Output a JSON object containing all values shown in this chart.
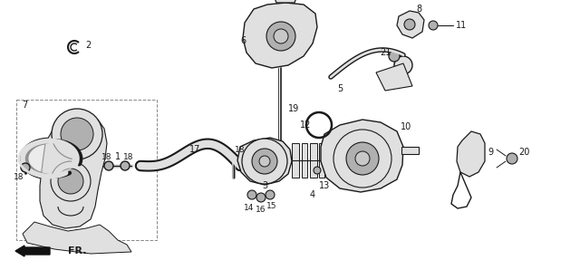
{
  "bg_color": "#ffffff",
  "lc": "#1a1a1a",
  "fig_w": 6.4,
  "fig_h": 2.98,
  "dpi": 100
}
